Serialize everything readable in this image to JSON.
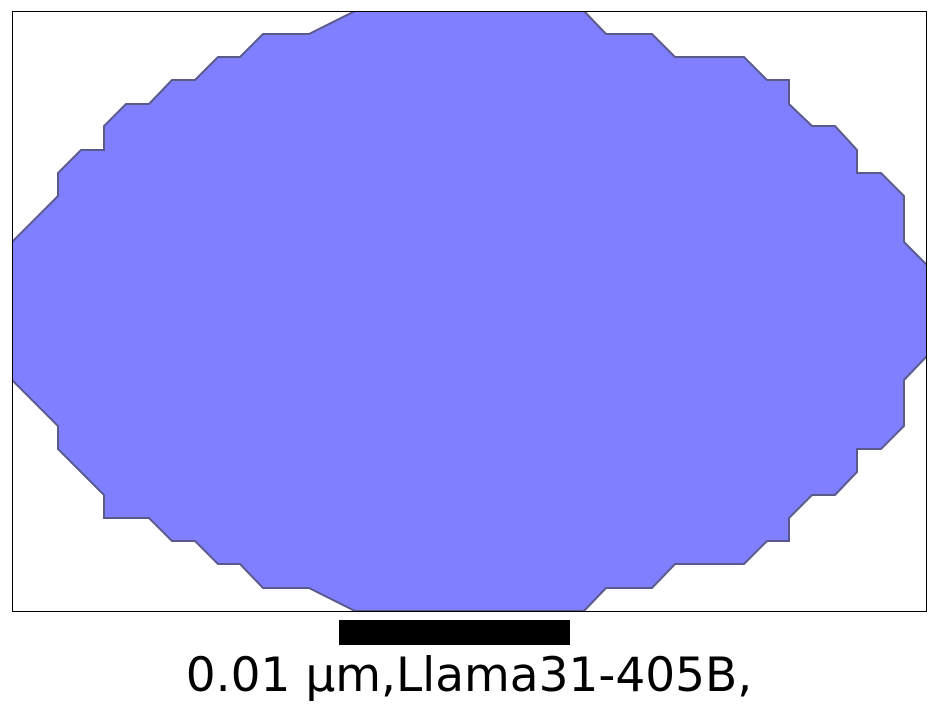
{
  "shape_fill_color": "#7f7fff",
  "shape_stroke_color": "#5a5a8a",
  "frame_border_color": "#000000",
  "scale_bar_color": "#000000",
  "scale_label": "0.01 µm,Llama31-405B,"
}
